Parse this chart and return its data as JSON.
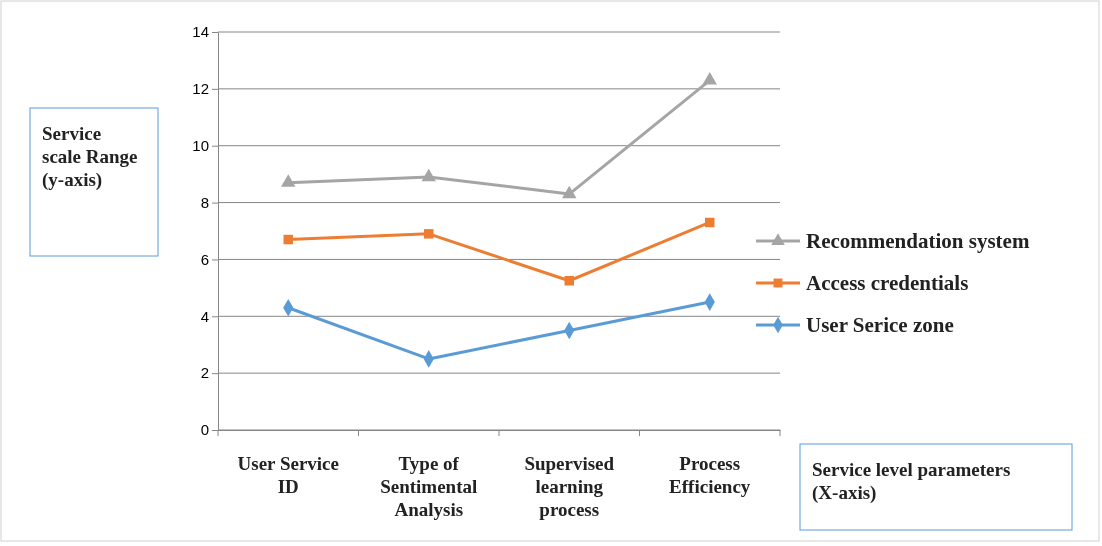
{
  "chart_data": {
    "type": "line",
    "xlabel": "Service level parameters (X-axis)",
    "ylabel": "Service scale Range (y-axis)",
    "categories": [
      "User Service ID",
      "Type of Sentimental Analysis",
      "Supervised learning process",
      "Process Efficiency"
    ],
    "series": [
      {
        "name": "Recommendation system",
        "color": "#a5a5a5",
        "marker": "triangle",
        "values": [
          8.7,
          8.9,
          8.3,
          12.3
        ]
      },
      {
        "name": "Access credentials",
        "color": "#ed7d31",
        "marker": "square",
        "values": [
          6.7,
          6.9,
          5.25,
          7.3
        ]
      },
      {
        "name": "User Serice zone",
        "color": "#5b9bd5",
        "marker": "diamond",
        "values": [
          4.3,
          2.5,
          3.5,
          4.5
        ]
      }
    ],
    "ylim": [
      0,
      14
    ],
    "yticks": [
      0,
      2,
      4,
      6,
      8,
      10,
      12,
      14
    ],
    "grid": "y",
    "legend": "right",
    "line_style": "solid"
  }
}
